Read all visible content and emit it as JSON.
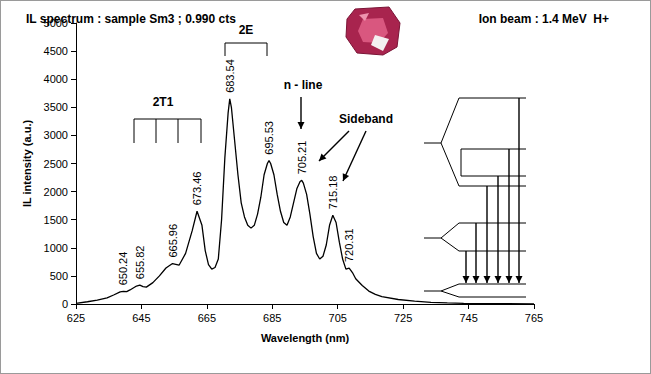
{
  "chart_data": {
    "type": "line",
    "title": "IL spectrum : sample Sm3 ; 0.990 cts",
    "subtitle": "Ion beam : 1.4 MeV  H+",
    "x_label": "Wavelength (nm)",
    "y_label": "IL intensity (a.u.)",
    "color": "#000000",
    "marker": "none",
    "grid": false,
    "xlim": [
      625,
      765
    ],
    "xticks": [
      625,
      645,
      665,
      685,
      705,
      725,
      745,
      765
    ],
    "ylim": [
      0,
      5000
    ],
    "yticks": [
      0,
      500,
      1000,
      1500,
      2000,
      2500,
      3000,
      3500,
      4000,
      4500,
      5000
    ],
    "x": [
      625,
      628.5,
      631.5,
      634.5,
      636.5,
      638.5,
      639.5,
      640.5,
      641.5,
      643.5,
      644.5,
      645.5,
      646.5,
      648.5,
      650.5,
      652.5,
      654.5,
      655.5,
      656.5,
      658.5,
      660.5,
      662,
      663.5,
      664.5,
      665.5,
      666.5,
      667.5,
      668.5,
      669.5,
      670.5,
      671.5,
      672,
      672.5,
      673.5,
      674.5,
      675.5,
      676.5,
      677.5,
      678.5,
      679.5,
      680.5,
      681.5,
      682.5,
      683.5,
      684,
      684.5,
      685.5,
      686.5,
      687.5,
      688.5,
      689.5,
      690.5,
      691.5,
      692.5,
      693.5,
      694,
      694.5,
      695.5,
      696.5,
      697.5,
      698.5,
      699.5,
      700.5,
      701.5,
      702.5,
      703.5,
      704.5,
      705.5,
      706.5,
      707.5,
      708.5,
      709.5,
      710.5,
      712.5,
      714.5,
      716.5,
      718.5,
      723.5,
      728.5,
      733.5,
      738.5,
      743.5,
      748.5,
      753.5,
      765
    ],
    "values": [
      12,
      40,
      70,
      110,
      160,
      215,
      225,
      220,
      250,
      320,
      335,
      310,
      300,
      380,
      500,
      640,
      720,
      705,
      690,
      900,
      1300,
      1650,
      1400,
      950,
      700,
      620,
      650,
      800,
      1500,
      2600,
      3400,
      3650,
      3500,
      2900,
      2300,
      1800,
      1550,
      1400,
      1350,
      1400,
      1600,
      1900,
      2300,
      2500,
      2550,
      2500,
      2300,
      1950,
      1650,
      1450,
      1400,
      1550,
      1800,
      2050,
      2180,
      2200,
      2150,
      1950,
      1600,
      1200,
      900,
      800,
      850,
      1050,
      1400,
      1580,
      1450,
      1100,
      800,
      620,
      640,
      560,
      450,
      330,
      230,
      170,
      130,
      80,
      50,
      30,
      20,
      12,
      8,
      5,
      3
    ],
    "peak_labels": [
      650.24,
      655.82,
      665.96,
      673.46,
      683.54,
      695.53,
      705.21,
      715.18,
      720.31
    ],
    "annotations": [
      "2T1",
      "2E",
      "n - line",
      "Sideband"
    ]
  }
}
